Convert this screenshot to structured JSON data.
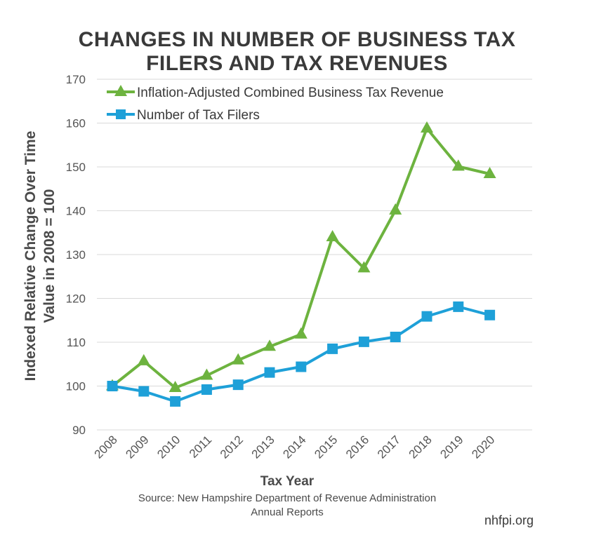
{
  "chart_data": {
    "type": "line",
    "title_lines": [
      "CHANGES IN NUMBER OF BUSINESS TAX",
      "FILERS AND TAX REVENUES"
    ],
    "ylabel_lines": [
      "Indexed Relative Change Over Time",
      "Value in 2008 = 100"
    ],
    "xlabel": "Tax Year",
    "categories": [
      "2008",
      "2009",
      "2010",
      "2011",
      "2012",
      "2013",
      "2014",
      "2015",
      "2016",
      "2017",
      "2018",
      "2019",
      "2020"
    ],
    "ylim": [
      90,
      170
    ],
    "yticks": [
      90,
      100,
      110,
      120,
      130,
      140,
      150,
      160,
      170
    ],
    "grid": true,
    "legend_position": "top-left",
    "series": [
      {
        "name": "Inflation-Adjusted Combined Business Tax Revenue",
        "color": "#6db33f",
        "marker": "triangle",
        "values": [
          100,
          105.7,
          99.6,
          102.4,
          105.9,
          109.0,
          111.8,
          134.0,
          126.9,
          140.1,
          158.8,
          150.1,
          148.4
        ]
      },
      {
        "name": "Number of Tax Filers",
        "color": "#1ea0d8",
        "marker": "square",
        "values": [
          100,
          98.8,
          96.5,
          99.2,
          100.3,
          103.1,
          104.4,
          108.5,
          110.1,
          111.2,
          115.9,
          118.1,
          116.2
        ]
      }
    ],
    "source_lines": [
      "Source: New Hampshire Department of Revenue Administration",
      "Annual Reports"
    ],
    "credit": "nhfpi.org"
  }
}
